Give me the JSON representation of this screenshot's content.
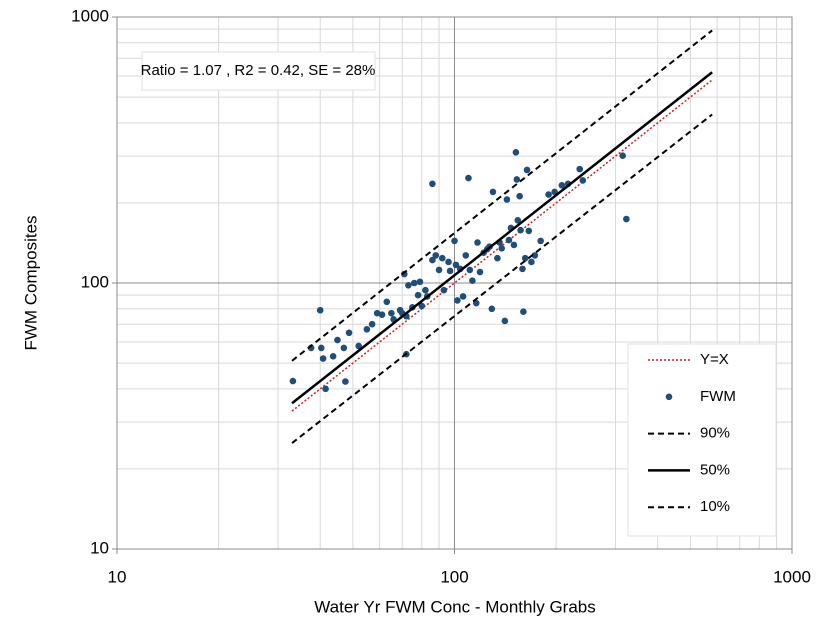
{
  "chart_data": {
    "type": "scatter",
    "x_label": "Water Yr FWM Conc - Monthly Grabs",
    "y_label": "FWM Composites",
    "annotation": "Ratio = 1.07 , R2 = 0.42, SE = 28%",
    "xlim": [
      10,
      1000
    ],
    "ylim": [
      10,
      1000
    ],
    "xticks": [
      10,
      100,
      1000
    ],
    "yticks": [
      10,
      100,
      1000
    ],
    "log_x": true,
    "log_y": true,
    "grid": true,
    "legend": "lower right",
    "series": [
      {
        "name": "Y=X",
        "type": "line",
        "style": "dotted",
        "color": "#d02020",
        "x": [
          33,
          580
        ],
        "values": [
          33,
          580
        ]
      },
      {
        "name": "FWM",
        "type": "scatter",
        "color": "#1f4e79",
        "x": [
          33.2,
          37.6,
          40,
          40.3,
          40.8,
          41.5,
          43.7,
          45,
          47,
          47.5,
          48.7,
          52,
          55,
          57,
          59,
          61,
          63,
          65,
          66,
          69,
          70,
          71,
          72,
          72,
          73,
          75,
          76,
          78,
          79,
          80,
          82,
          83,
          86,
          86,
          88,
          90,
          92,
          93,
          96,
          97,
          100,
          101,
          102,
          104,
          106,
          108,
          110,
          111,
          113,
          116,
          117,
          119,
          122,
          125,
          127,
          129,
          130,
          134,
          136,
          138,
          141,
          143,
          145,
          147,
          150,
          152,
          153,
          154,
          156,
          157,
          159,
          160,
          162,
          164,
          166,
          169,
          173,
          180,
          190,
          198,
          208,
          217,
          235,
          240,
          315,
          323
        ],
        "values": [
          42.8,
          57,
          79,
          57,
          52,
          40,
          53,
          61,
          57,
          42.6,
          65,
          58,
          67,
          70,
          77,
          76,
          85,
          77,
          73,
          79,
          77,
          108,
          54,
          75,
          98,
          81,
          100,
          90,
          101,
          82,
          94,
          89,
          236,
          122,
          127,
          112,
          124,
          94,
          120,
          111,
          144,
          117,
          86,
          113,
          89,
          127,
          248,
          112,
          102,
          84,
          142,
          110,
          130,
          134,
          137,
          80,
          220,
          124,
          142,
          135,
          72,
          206,
          145,
          161,
          139,
          310,
          245,
          172,
          212,
          158,
          113,
          78,
          124,
          266,
          157,
          120,
          127,
          144,
          215,
          220,
          233,
          236,
          268,
          243,
          301,
          174
        ]
      },
      {
        "name": "90%",
        "type": "line",
        "style": "dashed",
        "color": "#000000",
        "x": [
          33,
          580
        ],
        "values": [
          51,
          890
        ]
      },
      {
        "name": "50%",
        "type": "line",
        "style": "solid",
        "color": "#000000",
        "x": [
          33,
          580
        ],
        "values": [
          35.3,
          620
        ]
      },
      {
        "name": "10%",
        "type": "line",
        "style": "dashed",
        "color": "#000000",
        "x": [
          33,
          580
        ],
        "values": [
          25,
          430
        ]
      }
    ]
  }
}
